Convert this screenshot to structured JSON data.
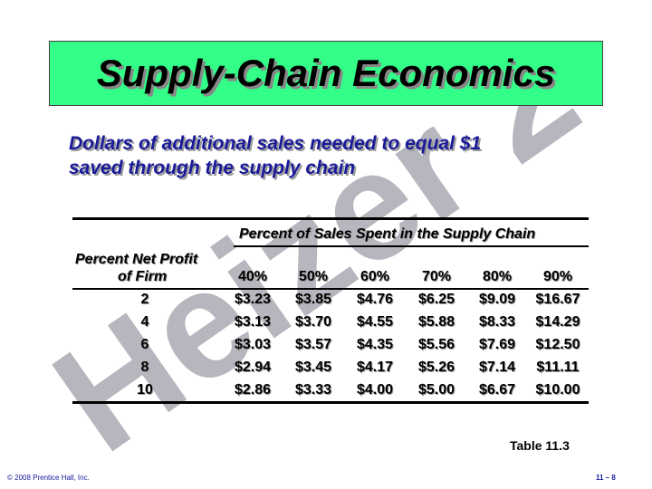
{
  "slide": {
    "title": "Supply-Chain Economics",
    "subtitle_line1": "Dollars of additional sales needed to equal $1",
    "subtitle_line2": "saved through the supply chain",
    "watermark_text": "Heizer 2",
    "table_label": "Table 11.3",
    "footer_copyright": "© 2008 Prentice Hall, Inc.",
    "footer_page": "11 – 8"
  },
  "table": {
    "group_header": "Percent of Sales Spent in the Supply Chain",
    "row_header_line1": "Percent Net Profit",
    "row_header_line2": "of Firm",
    "columns": [
      "40%",
      "50%",
      "60%",
      "70%",
      "80%",
      "90%"
    ],
    "rows": [
      {
        "profit": "2",
        "values": [
          "$3.23",
          "$3.85",
          "$4.76",
          "$6.25",
          "$9.09",
          "$16.67"
        ]
      },
      {
        "profit": "4",
        "values": [
          "$3.13",
          "$3.70",
          "$4.55",
          "$5.88",
          "$8.33",
          "$14.29"
        ]
      },
      {
        "profit": "6",
        "values": [
          "$3.03",
          "$3.57",
          "$4.35",
          "$5.56",
          "$7.69",
          "$12.50"
        ]
      },
      {
        "profit": "8",
        "values": [
          "$2.94",
          "$3.45",
          "$4.17",
          "$5.26",
          "$7.14",
          "$11.11"
        ]
      },
      {
        "profit": "10",
        "values": [
          "$2.86",
          "$3.33",
          "$4.00",
          "$5.00",
          "$6.67",
          "$10.00"
        ]
      }
    ]
  }
}
